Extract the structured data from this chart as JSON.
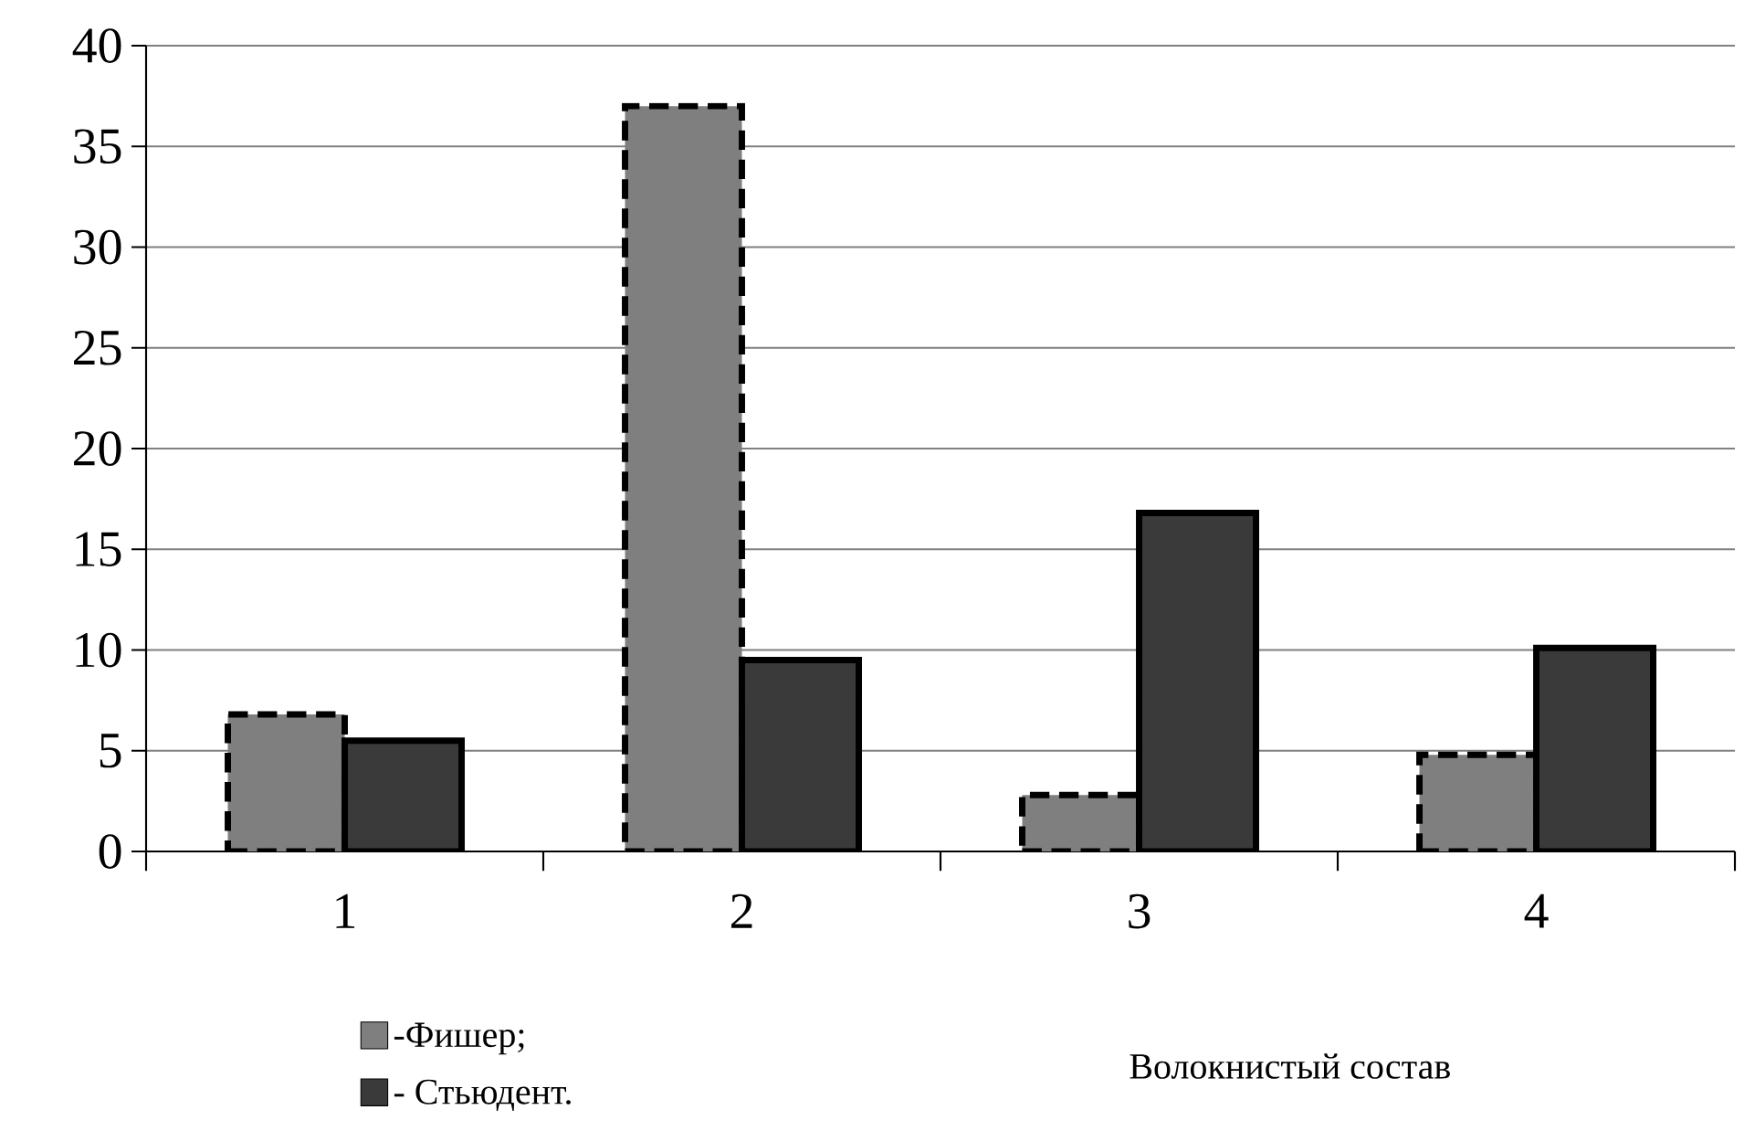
{
  "chart_data": {
    "type": "bar",
    "xlabel": "Волокнистый состав",
    "categories": [
      "1",
      "2",
      "3",
      "4"
    ],
    "series": [
      {
        "name": "-Фишер;",
        "color": "#7f7f7f",
        "line_style": "dashed",
        "values": [
          6.8,
          37.0,
          2.8,
          4.8
        ]
      },
      {
        "name": "- Стьюдент.",
        "color": "#3a3a3a",
        "line_style": "solid",
        "values": [
          5.5,
          9.5,
          16.8,
          10.1
        ]
      }
    ],
    "ylim": [
      0,
      40
    ],
    "yticks": [
      0,
      5,
      10,
      15,
      20,
      25,
      30,
      35,
      40
    ],
    "grid": "y",
    "legend": "bottom left"
  }
}
